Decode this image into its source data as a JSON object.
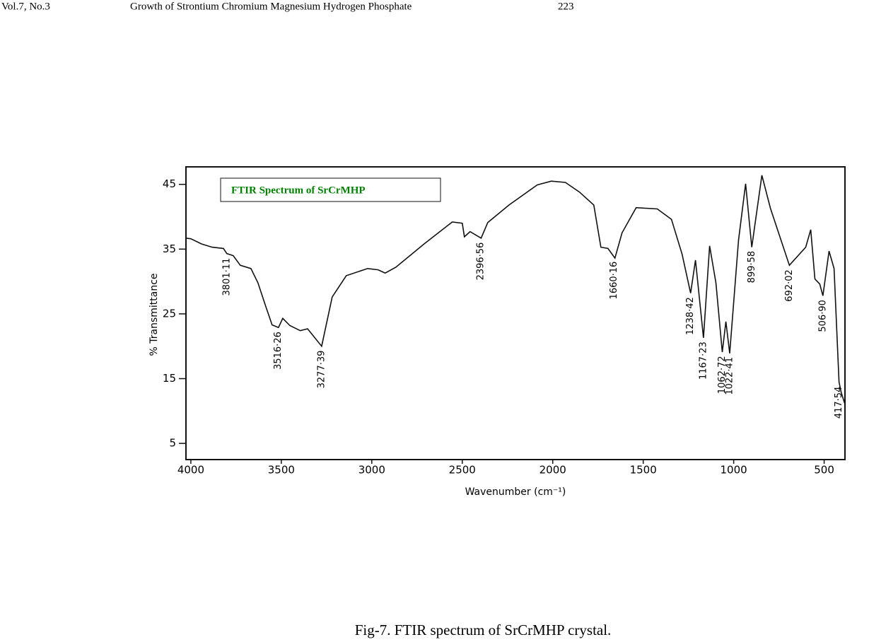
{
  "header": {
    "volume": "Vol.7, No.3",
    "title": "Growth of Strontium Chromium Magnesium Hydrogen Phosphate",
    "page": "223"
  },
  "chart_data": {
    "type": "line",
    "title": "FTIR Spectrum of SrCrMHP",
    "x_label": "Wavenumber (cm⁻¹)",
    "y_label": "% Transmittance",
    "x": [
      4027,
      4000,
      3941,
      3883,
      3820,
      3801,
      3766,
      3727,
      3668,
      3629,
      3590,
      3551,
      3516,
      3492,
      3453,
      3395,
      3355,
      3277,
      3219,
      3141,
      3023,
      2965,
      2926,
      2867,
      2711,
      2555,
      2500,
      2488,
      2457,
      2396,
      2359,
      2242,
      2086,
      2008,
      1930,
      1852,
      1773,
      1734,
      1695,
      1656,
      1617,
      1539,
      1422,
      1344,
      1285,
      1238,
      1211,
      1167,
      1133,
      1098,
      1063,
      1043,
      1022,
      973,
      934,
      900,
      844,
      797,
      692,
      602,
      574,
      551,
      524,
      507,
      473,
      445,
      418,
      406,
      387
    ],
    "series": [
      {
        "name": "SrCrMHP",
        "color": "#111111",
        "values": [
          36.7,
          36.6,
          35.8,
          35.3,
          35.1,
          34.3,
          34.0,
          32.5,
          32.0,
          29.8,
          26.5,
          23.3,
          22.9,
          24.3,
          23.2,
          22.4,
          22.7,
          20.0,
          27.6,
          30.9,
          32.0,
          31.8,
          31.3,
          32.2,
          35.8,
          39.2,
          39.0,
          36.9,
          37.7,
          36.7,
          39.1,
          41.8,
          44.9,
          45.5,
          45.3,
          43.8,
          41.8,
          35.3,
          35.1,
          33.6,
          37.5,
          41.4,
          41.2,
          39.6,
          34.2,
          28.2,
          33.3,
          21.3,
          35.5,
          29.8,
          19.1,
          23.8,
          18.9,
          36.4,
          45.1,
          35.3,
          46.4,
          41.3,
          32.5,
          35.3,
          38.0,
          30.4,
          29.6,
          27.8,
          34.7,
          32.0,
          14.5,
          12.9,
          11.2
        ]
      }
    ],
    "annotations": [
      {
        "x": 3801.11,
        "label": "3801·11"
      },
      {
        "x": 3516.26,
        "label": "3516·26"
      },
      {
        "x": 3277.39,
        "label": "3277·39"
      },
      {
        "x": 2396.56,
        "label": "2396·56"
      },
      {
        "x": 1660.16,
        "label": "1660·16"
      },
      {
        "x": 1238.42,
        "label": "1238·42"
      },
      {
        "x": 1167.23,
        "label": "1167·23"
      },
      {
        "x": 1062.72,
        "label": "1062·72"
      },
      {
        "x": 1022.41,
        "label": "1022·41"
      },
      {
        "x": 899.58,
        "label": "899·58"
      },
      {
        "x": 692.02,
        "label": "692·02"
      },
      {
        "x": 506.9,
        "label": "506·90"
      },
      {
        "x": 417.54,
        "label": "417·54"
      }
    ],
    "xlim": [
      4027,
      385
    ],
    "xticks": [
      4000,
      3500,
      3000,
      2500,
      2000,
      1500,
      1000,
      500
    ],
    "ylim": [
      2.5,
      47.7
    ],
    "yticks": [
      5,
      15,
      25,
      35,
      45
    ],
    "title_color": "#008000"
  },
  "caption": "Fig-7. FTIR spectrum of SrCrMHP crystal."
}
